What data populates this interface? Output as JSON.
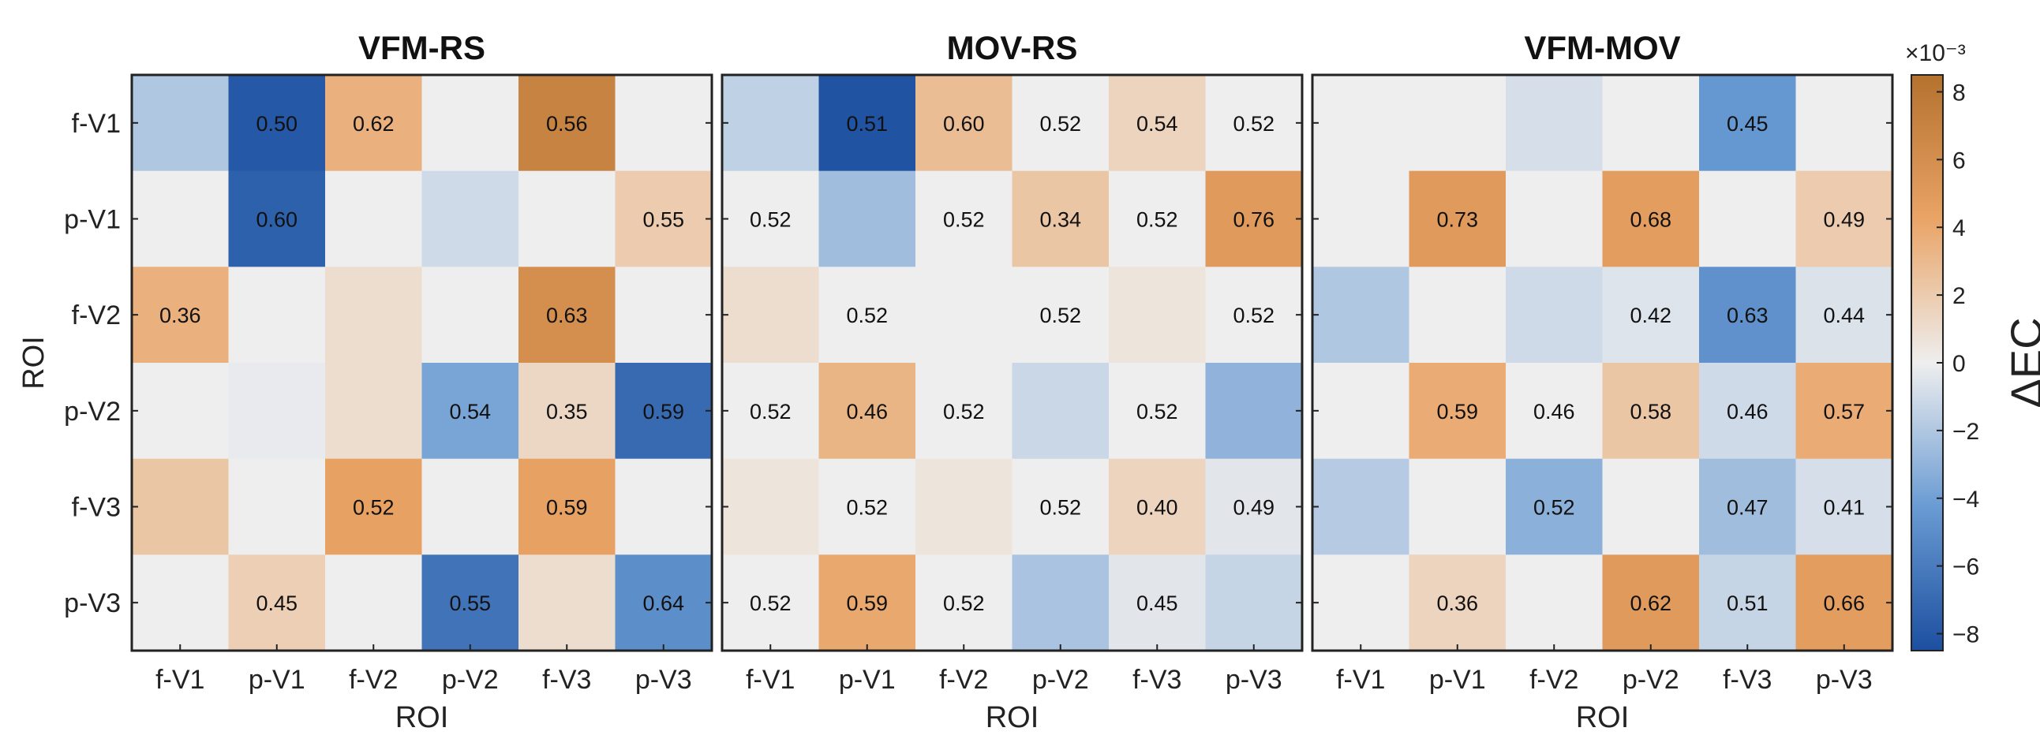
{
  "chart_data": {
    "type": "heatmap",
    "rows": [
      "f-V1",
      "p-V1",
      "f-V2",
      "p-V2",
      "f-V3",
      "p-V3"
    ],
    "cols": [
      "f-V1",
      "p-V1",
      "f-V2",
      "p-V2",
      "f-V3",
      "p-V3"
    ],
    "ylabel": "ROI",
    "xlabel": "ROI",
    "colorbar": {
      "label": "ΔEC",
      "exponent_label": "×10⁻³",
      "range": [
        -8.5,
        8.5
      ],
      "ticks": [
        -8,
        -6,
        -4,
        -2,
        0,
        2,
        4,
        6,
        8
      ],
      "colors": {
        "negative": "#1c4fa0",
        "zero": "#eeeeee",
        "positive": "#b5712e"
      }
    },
    "panels": [
      {
        "title": "VFM-RS",
        "delta": [
          [
            -2,
            -8,
            3.5,
            0,
            7,
            0
          ],
          [
            0,
            -7.5,
            0,
            -1,
            0,
            2
          ],
          [
            3.5,
            0,
            1,
            0,
            6,
            0
          ],
          [
            0,
            -0.2,
            1,
            -3.8,
            1.3,
            -7
          ],
          [
            2.3,
            0,
            4.5,
            0,
            4.5,
            0
          ],
          [
            0,
            1.8,
            0,
            -6.5,
            1,
            -5
          ]
        ],
        "labels": [
          [
            "",
            "0.50",
            "0.62",
            "",
            "0.56",
            ""
          ],
          [
            "",
            "0.60",
            "",
            "",
            "",
            "0.55"
          ],
          [
            "0.36",
            "",
            "",
            "",
            "0.63",
            ""
          ],
          [
            "",
            "",
            "",
            "0.54",
            "0.35",
            "0.59"
          ],
          [
            "",
            "",
            "0.52",
            "",
            "0.59",
            ""
          ],
          [
            "",
            "0.45",
            "",
            "0.55",
            "",
            "0.64"
          ]
        ]
      },
      {
        "title": "MOV-RS",
        "delta": [
          [
            -1.5,
            -8.3,
            2.8,
            0,
            1.5,
            0
          ],
          [
            0,
            -2.5,
            0,
            2.3,
            0,
            5
          ],
          [
            1,
            0,
            0,
            0,
            0.6,
            0
          ],
          [
            0,
            3.3,
            0,
            -1.2,
            0,
            -3
          ],
          [
            0.6,
            0,
            0.6,
            0,
            1.5,
            -0.4
          ],
          [
            0,
            4,
            0,
            -2.2,
            -0.4,
            -1.3
          ]
        ],
        "labels": [
          [
            "",
            "0.51",
            "0.60",
            "0.52",
            "0.54",
            "0.52"
          ],
          [
            "0.52",
            "",
            "0.52",
            "0.34",
            "0.52",
            "0.76"
          ],
          [
            "",
            "0.52",
            "",
            "0.52",
            "",
            "0.52"
          ],
          [
            "0.52",
            "0.46",
            "0.52",
            "",
            "0.52",
            ""
          ],
          [
            "",
            "0.52",
            "",
            "0.52",
            "0.40",
            "0.49"
          ],
          [
            "0.52",
            "0.59",
            "0.52",
            "",
            "0.45",
            ""
          ]
        ]
      },
      {
        "title": "VFM-MOV",
        "delta": [
          [
            0,
            0,
            -0.8,
            0,
            -4.5,
            0
          ],
          [
            0,
            5,
            0,
            4.8,
            0,
            2
          ],
          [
            -2,
            0,
            -1,
            -0.5,
            -4.8,
            -0.6
          ],
          [
            0,
            3.8,
            0,
            2.3,
            -1,
            3.8
          ],
          [
            -1.8,
            0,
            -3.2,
            0,
            -2.5,
            -0.8
          ],
          [
            0,
            1.5,
            0,
            5,
            -1.3,
            4.8
          ]
        ],
        "labels": [
          [
            "",
            "",
            "",
            "",
            "0.45",
            ""
          ],
          [
            "",
            "0.73",
            "",
            "0.68",
            "",
            "0.49"
          ],
          [
            "",
            "",
            "",
            "0.42",
            "0.63",
            "0.44"
          ],
          [
            "",
            "0.59",
            "0.46",
            "0.58",
            "0.46",
            "0.57"
          ],
          [
            "",
            "",
            "0.52",
            "",
            "0.47",
            "0.41"
          ],
          [
            "",
            "0.36",
            "",
            "0.62",
            "0.51",
            "0.66"
          ]
        ]
      }
    ]
  }
}
